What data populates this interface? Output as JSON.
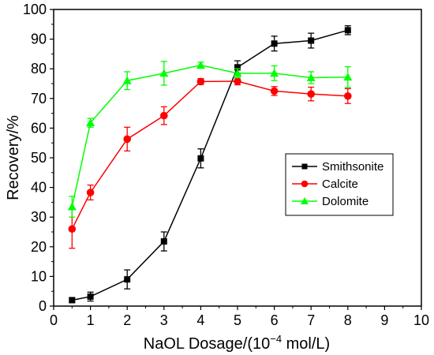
{
  "chart_data": {
    "type": "line",
    "xlabel": "NaOL Dosage/(10",
    "xlabel_sup": "−4",
    "xlabel_unit": " mol/L)",
    "ylabel": "Recovery/%",
    "xlim": [
      0,
      10
    ],
    "ylim": [
      0,
      100
    ],
    "xticks": [
      0,
      1,
      2,
      3,
      4,
      5,
      6,
      7,
      8,
      9,
      10
    ],
    "yticks": [
      0,
      10,
      20,
      30,
      40,
      50,
      60,
      70,
      80,
      90,
      100
    ],
    "grid": false,
    "legend_position": "right",
    "series": [
      {
        "name": "Smithsonite",
        "color": "#000000",
        "marker": "square",
        "x": [
          0.5,
          1,
          2,
          3,
          4,
          5,
          6,
          7,
          8
        ],
        "values": [
          2.0,
          3.2,
          9.0,
          21.8,
          49.8,
          80.5,
          88.5,
          89.5,
          93.0
        ],
        "errors": [
          0.8,
          1.5,
          3.2,
          3.2,
          3.2,
          2.2,
          2.5,
          2.5,
          1.5
        ]
      },
      {
        "name": "Calcite",
        "color": "#ff0000",
        "marker": "circle",
        "x": [
          0.5,
          1,
          2,
          3,
          4,
          5,
          6,
          7,
          8
        ],
        "values": [
          26.0,
          38.3,
          56.3,
          64.2,
          75.7,
          75.8,
          72.5,
          71.5,
          70.8
        ],
        "errors": [
          6.5,
          2.5,
          4.0,
          3.0,
          1.0,
          1.2,
          1.5,
          2.3,
          2.5
        ]
      },
      {
        "name": "Dolomite",
        "color": "#00ff00",
        "marker": "triangle",
        "x": [
          0.5,
          1,
          2,
          3,
          4,
          5,
          6,
          7,
          8
        ],
        "values": [
          33.5,
          61.8,
          76.0,
          78.5,
          81.2,
          78.5,
          78.5,
          77.0,
          77.2
        ],
        "errors": [
          3.5,
          1.5,
          3.0,
          4.0,
          1.0,
          1.5,
          2.5,
          2.0,
          3.5
        ]
      }
    ]
  }
}
